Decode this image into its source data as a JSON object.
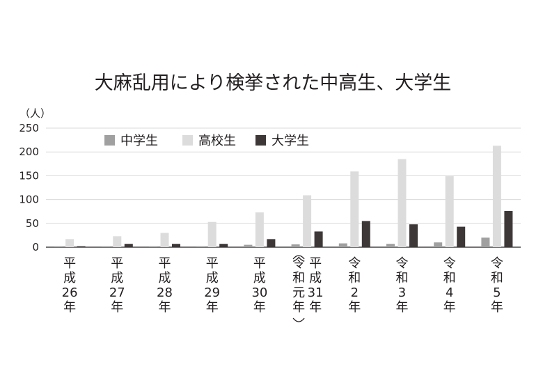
{
  "chart_data": {
    "type": "bar",
    "title": "大麻乱用により検挙された中高生、大学生",
    "y_unit": "（人）",
    "ylim": [
      0,
      250
    ],
    "yticks": [
      0,
      50,
      100,
      150,
      200,
      250
    ],
    "grid": true,
    "legend_position": "top-left",
    "categories": [
      [
        "平",
        "成",
        "26",
        "年"
      ],
      [
        "平",
        "成",
        "27",
        "年"
      ],
      [
        "平",
        "成",
        "28",
        "年"
      ],
      [
        "平",
        "成",
        "29",
        "年"
      ],
      [
        "平",
        "成",
        "30",
        "年"
      ],
      [
        "令",
        "和",
        "元",
        "年"
      ],
      [
        "令",
        "和",
        "2",
        "年"
      ],
      [
        "令",
        "和",
        "3",
        "年"
      ],
      [
        "令",
        "和",
        "4",
        "年"
      ],
      [
        "令",
        "和",
        "5",
        "年"
      ]
    ],
    "category_alt_label": [
      "平",
      "成",
      "31",
      "年"
    ],
    "series": [
      {
        "name": "中学生",
        "color": "#a0a0a0",
        "values": [
          2,
          2,
          2,
          2,
          5,
          6,
          8,
          7,
          10,
          20
        ]
      },
      {
        "name": "高校生",
        "color": "#dcdcdc",
        "values": [
          17,
          23,
          30,
          53,
          73,
          109,
          159,
          185,
          149,
          213
        ]
      },
      {
        "name": "大学生",
        "color": "#3d3738",
        "values": [
          2,
          7,
          7,
          7,
          17,
          33,
          55,
          48,
          43,
          76
        ]
      }
    ]
  }
}
